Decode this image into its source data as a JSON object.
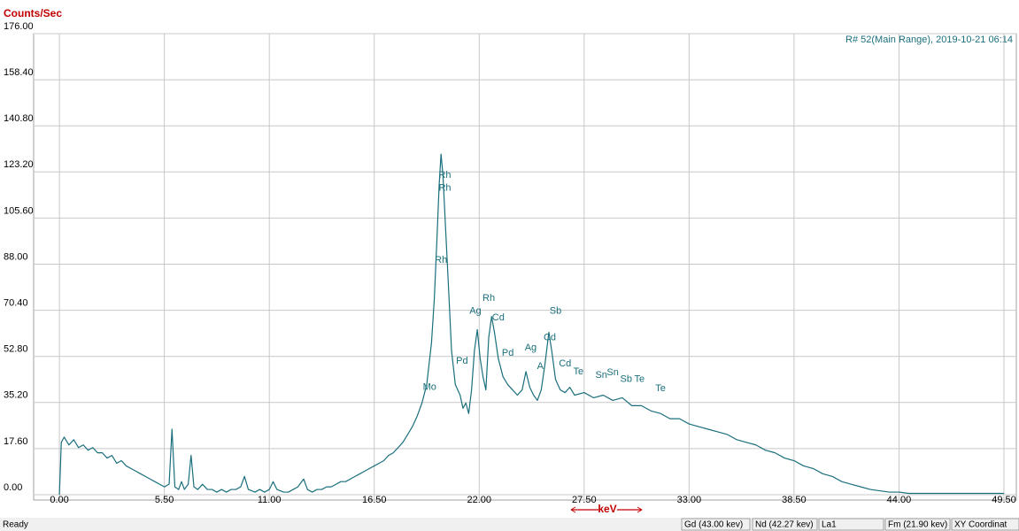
{
  "chart_data": {
    "type": "line",
    "y_label": "Counts/Sec",
    "x_label": "keV",
    "annotation": "R# 52(Main Range), 2019-10-21 06:14",
    "color": "#1a6f7c",
    "grid": true,
    "xlim": [
      -1.35,
      50.15
    ],
    "ylim": [
      0,
      176
    ],
    "xticks": [
      {
        "value": 0,
        "label": "0.00"
      },
      {
        "value": 5.5,
        "label": "5.50"
      },
      {
        "value": 11,
        "label": "11.00"
      },
      {
        "value": 16.5,
        "label": "16.50"
      },
      {
        "value": 22,
        "label": "22.00"
      },
      {
        "value": 27.5,
        "label": "27.50"
      },
      {
        "value": 33,
        "label": "33.00"
      },
      {
        "value": 38.5,
        "label": "38.50"
      },
      {
        "value": 44,
        "label": "44.00"
      },
      {
        "value": 49.5,
        "label": "49.50"
      }
    ],
    "yticks": [
      {
        "value": 0,
        "label": "0.00"
      },
      {
        "value": 17.6,
        "label": "17.60"
      },
      {
        "value": 35.2,
        "label": "35.20"
      },
      {
        "value": 52.8,
        "label": "52.80"
      },
      {
        "value": 70.4,
        "label": "70.40"
      },
      {
        "value": 88,
        "label": "88.00"
      },
      {
        "value": 105.6,
        "label": "105.60"
      },
      {
        "value": 123.2,
        "label": "123.20"
      },
      {
        "value": 140.8,
        "label": "140.80"
      },
      {
        "value": 158.4,
        "label": "158.40"
      },
      {
        "value": 176,
        "label": "176.00"
      }
    ],
    "x": [
      0,
      0.1,
      0.25,
      0.5,
      0.75,
      1,
      1.25,
      1.5,
      1.75,
      2,
      2.25,
      2.5,
      2.75,
      3,
      3.25,
      3.5,
      3.75,
      4,
      4.25,
      4.5,
      4.75,
      5,
      5.25,
      5.5,
      5.75,
      5.9,
      6.05,
      6.25,
      6.4,
      6.55,
      6.75,
      6.9,
      7.05,
      7.25,
      7.5,
      7.75,
      8,
      8.25,
      8.5,
      8.75,
      9,
      9.25,
      9.5,
      9.7,
      9.9,
      10.25,
      10.5,
      10.75,
      11,
      11.2,
      11.4,
      11.75,
      12,
      12.25,
      12.5,
      12.8,
      13,
      13.25,
      13.5,
      13.75,
      14,
      14.25,
      14.5,
      14.75,
      15,
      15.25,
      15.5,
      15.75,
      16,
      16.25,
      16.5,
      16.75,
      17,
      17.25,
      17.5,
      17.75,
      18,
      18.25,
      18.5,
      18.75,
      19,
      19.25,
      19.5,
      19.65,
      19.8,
      19.9,
      20.0,
      20.1,
      20.25,
      20.4,
      20.55,
      20.75,
      21,
      21.15,
      21.3,
      21.45,
      21.6,
      21.75,
      21.9,
      22.05,
      22.2,
      22.35,
      22.5,
      22.65,
      22.8,
      23,
      23.25,
      23.5,
      23.75,
      24,
      24.25,
      24.45,
      24.65,
      24.85,
      25.05,
      25.25,
      25.45,
      25.65,
      25.8,
      26,
      26.25,
      26.5,
      26.75,
      27,
      27.5,
      28,
      28.5,
      29,
      29.5,
      30,
      30.5,
      31,
      31.5,
      32,
      32.5,
      33,
      33.5,
      34,
      34.5,
      35,
      35.5,
      36,
      36.5,
      37,
      37.5,
      38,
      38.5,
      39,
      39.5,
      40,
      40.5,
      41,
      41.5,
      42,
      42.5,
      43,
      43.5,
      44,
      44.5,
      45,
      45.5,
      46,
      46.5,
      47,
      47.5,
      48,
      48.5,
      49,
      49.5
    ],
    "values": [
      0,
      20,
      22,
      19,
      21,
      18,
      19,
      17,
      18,
      16,
      16,
      14,
      15,
      12,
      13,
      11,
      10,
      9,
      8,
      7,
      6,
      5,
      4,
      3,
      4,
      25,
      3,
      2,
      5,
      2,
      4,
      15,
      3,
      2,
      4,
      2,
      2,
      1,
      2,
      1,
      2,
      2,
      3,
      7,
      2,
      1,
      2,
      1,
      2,
      5,
      2,
      1,
      1,
      2,
      3,
      6,
      2,
      1,
      2,
      2,
      3,
      3,
      4,
      5,
      5,
      6,
      7,
      8,
      9,
      10,
      11,
      12,
      13,
      15,
      16,
      18,
      20,
      23,
      26,
      30,
      35,
      42,
      58,
      75,
      100,
      118,
      130,
      122,
      100,
      78,
      55,
      42,
      38,
      33,
      35,
      31,
      40,
      55,
      63,
      52,
      45,
      40,
      60,
      68,
      62,
      52,
      45,
      42,
      40,
      38,
      40,
      47,
      41,
      38,
      36,
      40,
      50,
      62,
      55,
      44,
      40,
      39,
      41,
      38,
      39,
      37,
      38,
      36,
      37,
      34,
      34,
      32,
      31,
      29,
      29,
      27,
      26,
      25,
      24,
      23,
      21,
      20,
      19,
      17,
      16,
      14,
      13,
      11,
      10,
      8,
      7,
      5,
      4,
      3,
      2,
      1.5,
      1,
      1,
      0.5,
      0.5,
      0.5,
      0.5,
      0.5,
      0.5,
      0.5,
      0.5,
      0.5,
      0.5,
      0.5
    ],
    "annotations": [
      {
        "text": "Rh",
        "x": 20.2,
        "y": 122
      },
      {
        "text": "Rh",
        "x": 20.2,
        "y": 117
      },
      {
        "text": "Rh",
        "x": 20.0,
        "y": 89.5
      },
      {
        "text": "Mo",
        "x": 19.4,
        "y": 41
      },
      {
        "text": "Pd",
        "x": 21.1,
        "y": 51
      },
      {
        "text": "Ag",
        "x": 21.8,
        "y": 70
      },
      {
        "text": "Rh",
        "x": 22.5,
        "y": 75
      },
      {
        "text": "Cd",
        "x": 23.0,
        "y": 67.5
      },
      {
        "text": "Pd",
        "x": 23.5,
        "y": 54
      },
      {
        "text": "Ag",
        "x": 24.7,
        "y": 56
      },
      {
        "text": "A",
        "x": 25.2,
        "y": 49
      },
      {
        "text": "Sb",
        "x": 26.0,
        "y": 70
      },
      {
        "text": "Cd",
        "x": 25.7,
        "y": 60
      },
      {
        "text": "Cd",
        "x": 26.5,
        "y": 50
      },
      {
        "text": "Te",
        "x": 27.2,
        "y": 47
      },
      {
        "text": "Sn",
        "x": 28.4,
        "y": 45.6
      },
      {
        "text": "Sn",
        "x": 29.0,
        "y": 46.6
      },
      {
        "text": "Sb",
        "x": 29.7,
        "y": 44
      },
      {
        "text": "Te",
        "x": 30.4,
        "y": 44
      },
      {
        "text": "Te",
        "x": 31.5,
        "y": 40.5
      }
    ]
  },
  "status_bar": {
    "ready": "Ready",
    "panels": [
      "Gd (43.00 kev)",
      "Nd (42.27 kev)",
      "La1",
      "Fm (21.90 kev)",
      "XY Coordinat"
    ]
  }
}
